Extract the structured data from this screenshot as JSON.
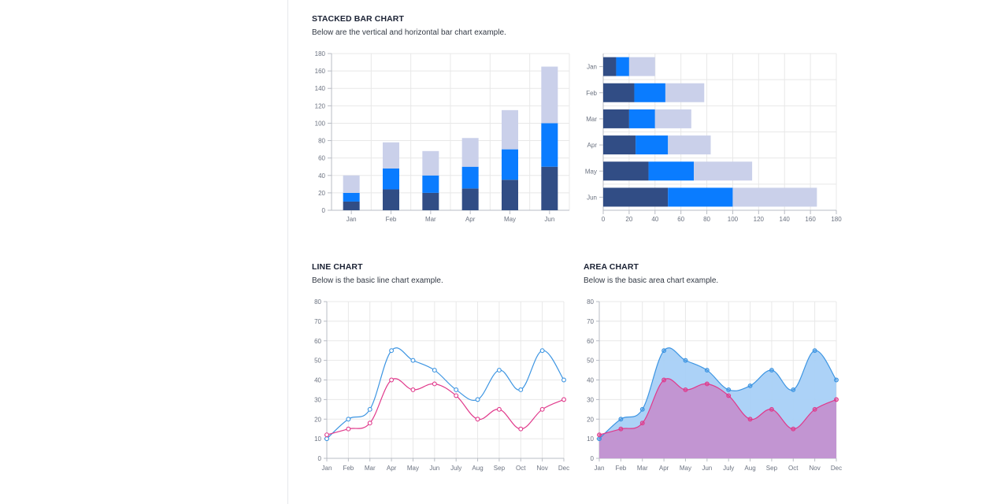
{
  "sections": {
    "stacked": {
      "title": "STACKED BAR CHART",
      "subtitle": "Below are the vertical and horizontal bar chart example."
    },
    "line": {
      "title": "LINE CHART",
      "subtitle": "Below is the basic line chart example."
    },
    "area": {
      "title": "AREA CHART",
      "subtitle": "Below is the basic area chart example."
    }
  },
  "colors": {
    "bar_dark": "#314d85",
    "bar_blue": "#0a7cff",
    "bar_light": "#cad0ea",
    "line_blue": "#3d95e2",
    "line_pink": "#e0398b",
    "area_blue_fill": "#a8d0f7",
    "area_pink_fill": "#c38fce",
    "grid": "#e8e8e8",
    "axis": "#b8bcc4"
  },
  "chart_data": [
    {
      "type": "bar",
      "orientation": "vertical",
      "stacked": true,
      "categories": [
        "Jan",
        "Feb",
        "Mar",
        "Apr",
        "May",
        "Jun"
      ],
      "series": [
        {
          "values": [
            10,
            24,
            20,
            25,
            35,
            50
          ]
        },
        {
          "values": [
            10,
            24,
            20,
            25,
            35,
            50
          ]
        },
        {
          "values": [
            20,
            30,
            28,
            33,
            45,
            65
          ]
        }
      ],
      "ylim": [
        0,
        180
      ],
      "yticks": [
        0,
        20,
        40,
        60,
        80,
        100,
        120,
        140,
        160,
        180
      ],
      "grid": true
    },
    {
      "type": "bar",
      "orientation": "horizontal",
      "stacked": true,
      "categories": [
        "Jan",
        "Feb",
        "Mar",
        "Apr",
        "May",
        "Jun"
      ],
      "series": [
        {
          "values": [
            10,
            24,
            20,
            25,
            35,
            50
          ]
        },
        {
          "values": [
            10,
            24,
            20,
            25,
            35,
            50
          ]
        },
        {
          "values": [
            20,
            30,
            28,
            33,
            45,
            65
          ]
        }
      ],
      "xlim": [
        0,
        180
      ],
      "xticks": [
        0,
        20,
        40,
        60,
        80,
        100,
        120,
        140,
        160,
        180
      ],
      "grid": true
    },
    {
      "type": "line",
      "categories": [
        "Jan",
        "Feb",
        "Mar",
        "Apr",
        "May",
        "Jun",
        "July",
        "Aug",
        "Sep",
        "Oct",
        "Nov",
        "Dec"
      ],
      "series": [
        {
          "values": [
            10,
            20,
            25,
            55,
            50,
            45,
            35,
            30,
            45,
            35,
            55,
            40
          ]
        },
        {
          "values": [
            12,
            15,
            18,
            40,
            35,
            38,
            32,
            20,
            25,
            15,
            25,
            30
          ]
        }
      ],
      "ylim": [
        0,
        80
      ],
      "yticks": [
        0,
        10,
        20,
        30,
        40,
        50,
        60,
        70,
        80
      ],
      "grid": true
    },
    {
      "type": "area",
      "categories": [
        "Jan",
        "Feb",
        "Mar",
        "Apr",
        "May",
        "Jun",
        "July",
        "Aug",
        "Sep",
        "Oct",
        "Nov",
        "Dec"
      ],
      "series": [
        {
          "values": [
            10,
            20,
            25,
            55,
            50,
            45,
            35,
            37,
            45,
            35,
            55,
            40
          ]
        },
        {
          "values": [
            12,
            15,
            18,
            40,
            35,
            38,
            32,
            20,
            25,
            15,
            25,
            30
          ]
        }
      ],
      "ylim": [
        0,
        80
      ],
      "yticks": [
        0,
        10,
        20,
        30,
        40,
        50,
        60,
        70,
        80
      ],
      "grid": true
    }
  ]
}
